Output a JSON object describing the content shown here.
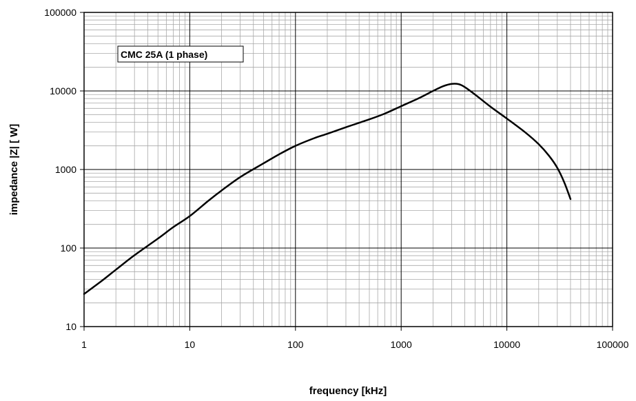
{
  "chart_data": {
    "type": "line",
    "title": "",
    "xlabel": "frequency [kHz]",
    "ylabel": "impedance  |Z| [ W]",
    "x_scale": "log",
    "y_scale": "log",
    "xlim": [
      1,
      100000
    ],
    "ylim": [
      10,
      100000
    ],
    "grid": true,
    "x_ticks": [
      "1",
      "10",
      "100",
      "1000",
      "10000",
      "100000"
    ],
    "y_ticks": [
      "10",
      "100",
      "1000",
      "10000",
      "100000"
    ],
    "annotation": "CMC 25A (1 phase)",
    "series": [
      {
        "name": "CMC 25A (1 phase)",
        "x": [
          1,
          1.5,
          2,
          3,
          5,
          7,
          10,
          15,
          20,
          30,
          50,
          70,
          100,
          150,
          200,
          300,
          500,
          700,
          1000,
          1500,
          2000,
          2500,
          3000,
          3500,
          4000,
          5000,
          7000,
          10000,
          15000,
          20000,
          25000,
          30000,
          35000,
          40000
        ],
        "y": [
          26,
          39,
          53,
          81,
          132,
          185,
          255,
          400,
          540,
          800,
          1200,
          1560,
          2000,
          2500,
          2850,
          3450,
          4350,
          5150,
          6400,
          8200,
          10000,
          11500,
          12300,
          12200,
          11200,
          9000,
          6300,
          4450,
          2950,
          2100,
          1500,
          1050,
          680,
          420
        ]
      }
    ]
  },
  "colors": {
    "background": "#ffffff",
    "plot_background": "#ffffff",
    "major_grid": "#000000",
    "minor_grid": "#a8a8a8",
    "line": "#000000"
  }
}
